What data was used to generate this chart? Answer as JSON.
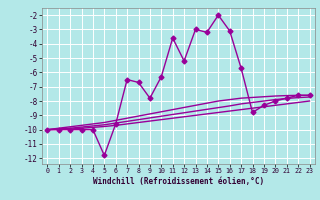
{
  "x": [
    0,
    1,
    2,
    3,
    4,
    5,
    6,
    7,
    8,
    9,
    10,
    11,
    12,
    13,
    14,
    15,
    16,
    17,
    18,
    19,
    20,
    21,
    22,
    23
  ],
  "y_main": [
    -10,
    -10,
    -10,
    -10,
    -10,
    -11.8,
    -9.6,
    -6.5,
    -6.7,
    -7.8,
    -6.3,
    -3.6,
    -5.2,
    -3.0,
    -3.2,
    -2.0,
    -3.1,
    -5.7,
    -8.8,
    -8.3,
    -8.0,
    -7.8,
    -7.6,
    -7.6
  ],
  "y_line1": [
    -10.0,
    -9.9,
    -9.8,
    -9.7,
    -9.6,
    -9.5,
    -9.35,
    -9.2,
    -9.05,
    -8.9,
    -8.75,
    -8.6,
    -8.45,
    -8.3,
    -8.15,
    -8.0,
    -7.9,
    -7.8,
    -7.75,
    -7.7,
    -7.65,
    -7.62,
    -7.6,
    -7.6
  ],
  "y_line2": [
    -10.0,
    -9.95,
    -9.9,
    -9.82,
    -9.74,
    -9.66,
    -9.54,
    -9.42,
    -9.3,
    -9.18,
    -9.06,
    -8.94,
    -8.82,
    -8.7,
    -8.58,
    -8.46,
    -8.34,
    -8.2,
    -8.1,
    -8.0,
    -7.9,
    -7.82,
    -7.76,
    -7.72
  ],
  "y_line3": [
    -10.0,
    -9.98,
    -9.96,
    -9.9,
    -9.84,
    -9.78,
    -9.7,
    -9.6,
    -9.5,
    -9.4,
    -9.3,
    -9.2,
    -9.1,
    -9.0,
    -8.9,
    -8.8,
    -8.7,
    -8.6,
    -8.5,
    -8.4,
    -8.3,
    -8.2,
    -8.1,
    -8.0
  ],
  "xlim": [
    -0.5,
    23.5
  ],
  "ylim": [
    -12.4,
    -1.5
  ],
  "yticks": [
    -2,
    -3,
    -4,
    -5,
    -6,
    -7,
    -8,
    -9,
    -10,
    -11,
    -12
  ],
  "xticks": [
    0,
    1,
    2,
    3,
    4,
    5,
    6,
    7,
    8,
    9,
    10,
    11,
    12,
    13,
    14,
    15,
    16,
    17,
    18,
    19,
    20,
    21,
    22,
    23
  ],
  "xlabel": "Windchill (Refroidissement éolien,°C)",
  "line_color": "#990099",
  "bg_color": "#b3e8e8",
  "grid_color": "#ffffff",
  "marker": "D",
  "marker_size": 2.5,
  "line_width": 1.0
}
